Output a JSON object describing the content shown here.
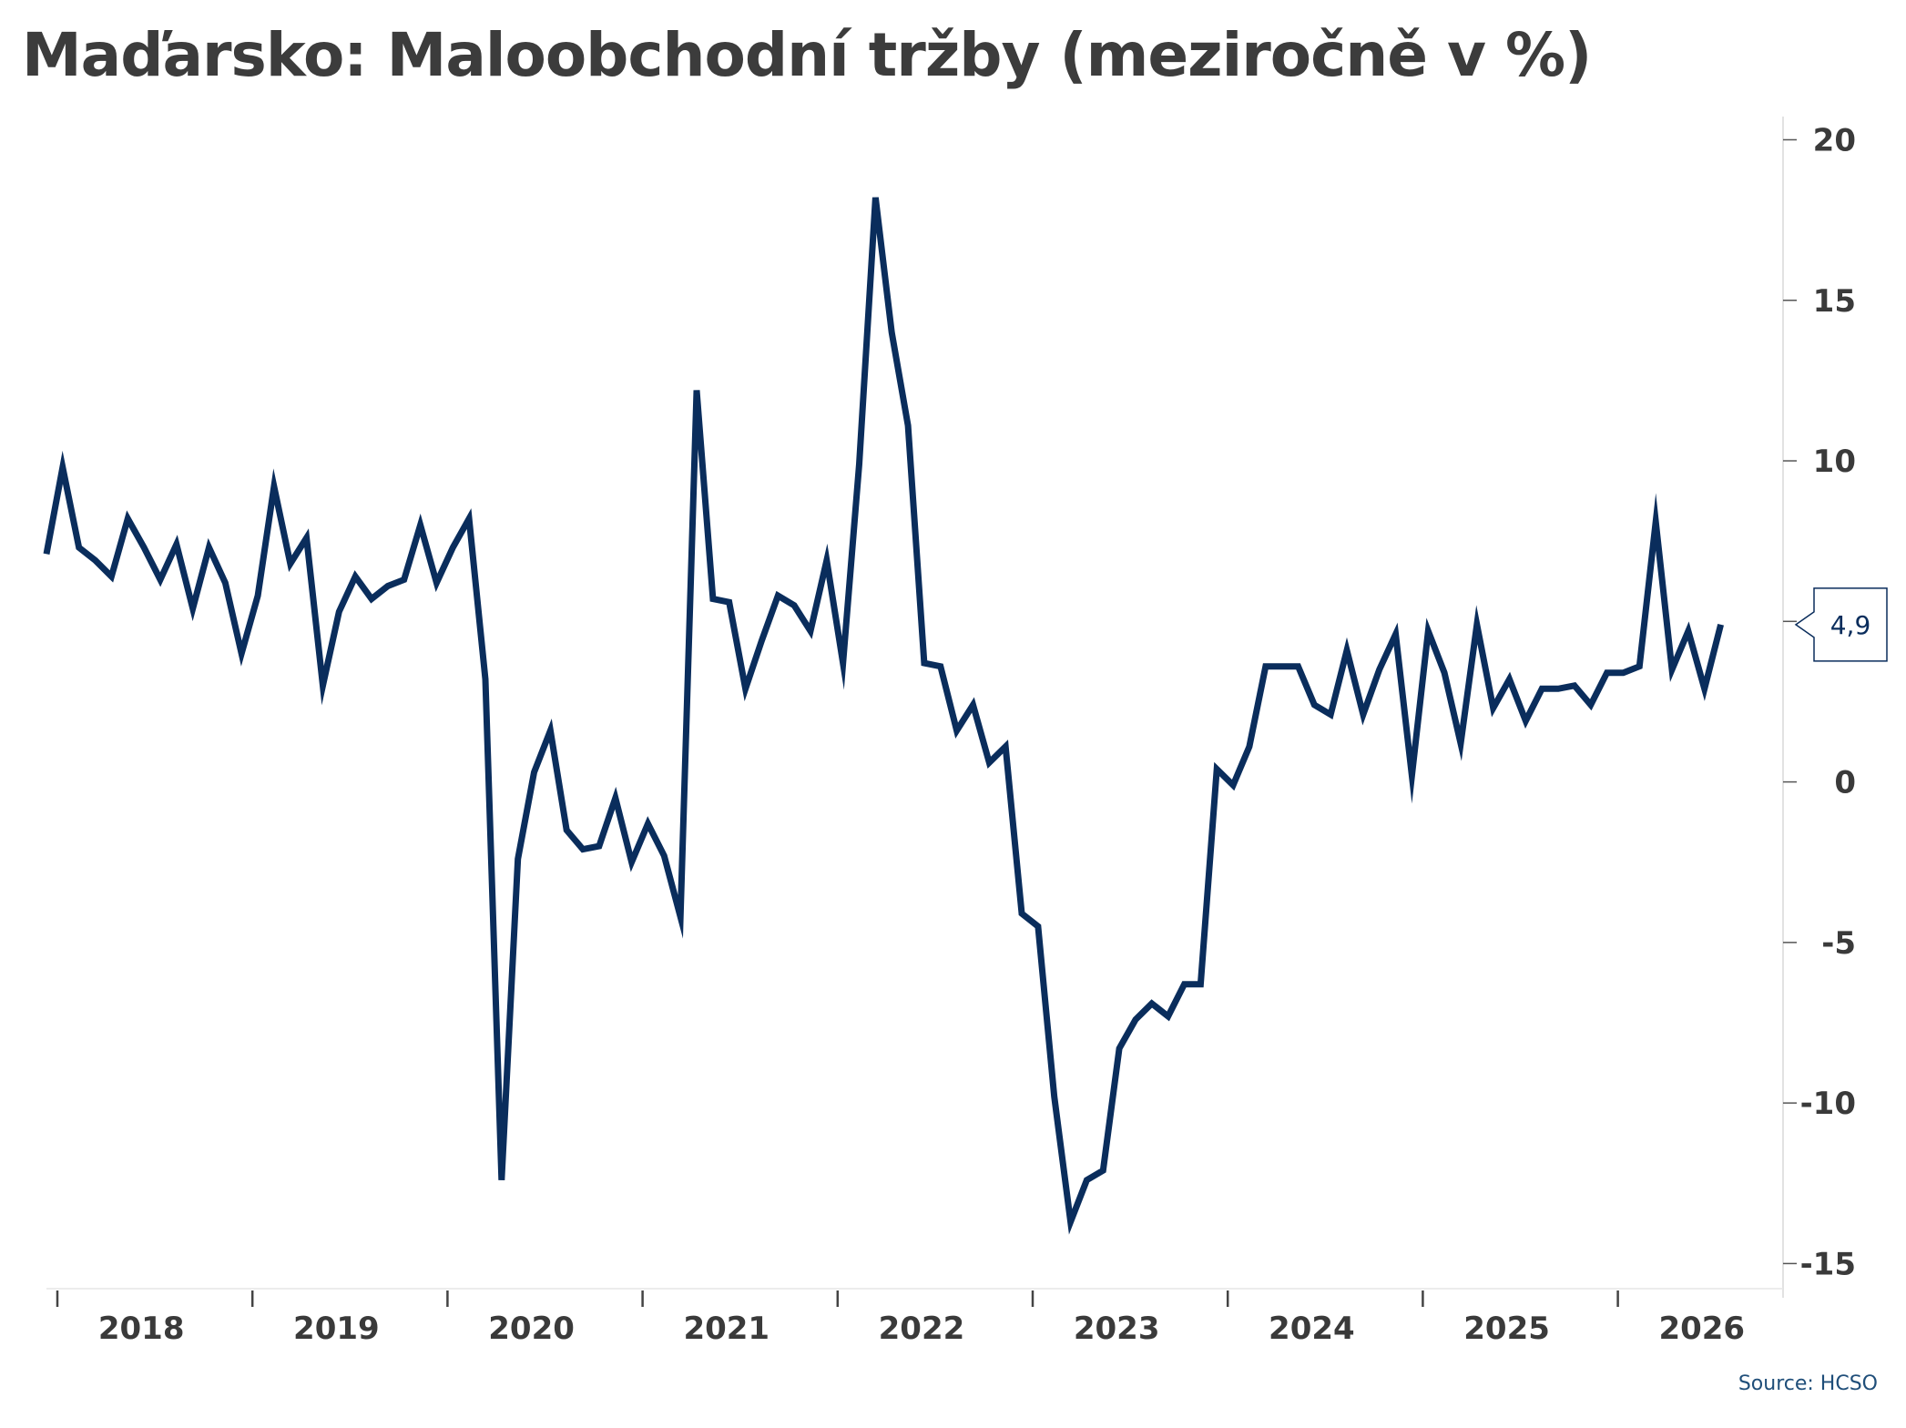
{
  "chart_data": {
    "type": "line",
    "title": "Maďarsko: Maloobchodní tržby (meziročně v %)",
    "source": "Source: HCSO",
    "line_color": "#0a2d5c",
    "y_axis": {
      "position": "right",
      "ylim": [
        -15.7,
        20.3
      ],
      "ticks": [
        20,
        15,
        10,
        5,
        0,
        -5,
        -10,
        -15
      ],
      "tick_labels": [
        "20",
        "15",
        "10",
        "5",
        "0",
        "-5",
        "-10",
        "-15"
      ]
    },
    "x_axis": {
      "start": "2018-01",
      "end": "2026-06",
      "year_labels": [
        "2018",
        "2019",
        "2020",
        "2021",
        "2022",
        "2023",
        "2024",
        "2025",
        "2026"
      ]
    },
    "grid": false,
    "last_value_label": "4,9",
    "series": [
      {
        "x_start": "2018-01",
        "frequency": "monthly",
        "values": [
          7.1,
          9.8,
          7.3,
          6.9,
          6.4,
          8.2,
          7.3,
          6.3,
          7.4,
          5.4,
          7.3,
          6.2,
          4.0,
          5.8,
          9.2,
          6.8,
          7.6,
          3.0,
          5.3,
          6.4,
          5.7,
          6.1,
          6.3,
          8.0,
          6.2,
          7.3,
          8.2,
          3.2,
          -12.4,
          -2.4,
          0.3,
          1.6,
          -1.5,
          -2.1,
          -2.0,
          -0.5,
          -2.5,
          -1.3,
          -2.3,
          -4.2,
          12.2,
          5.7,
          5.6,
          2.9,
          4.4,
          5.8,
          5.5,
          4.7,
          6.9,
          3.7,
          9.9,
          18.2,
          14.0,
          11.1,
          3.7,
          3.6,
          1.6,
          2.4,
          0.6,
          1.1,
          -4.1,
          -4.5,
          -9.8,
          -13.7,
          -12.4,
          -12.1,
          -8.3,
          -7.4,
          -6.9,
          -7.3,
          -6.3,
          -6.3,
          0.4,
          -0.1,
          1.1,
          3.6,
          3.6,
          3.6,
          2.4,
          2.1,
          4.1,
          2.1,
          3.5,
          4.6,
          0.2,
          4.7,
          3.4,
          1.2,
          4.9,
          2.3,
          3.2,
          1.9,
          2.9,
          2.9,
          3.0,
          2.4,
          3.4,
          3.4,
          3.6,
          8.1,
          3.5,
          4.7,
          2.9,
          4.9
        ]
      }
    ]
  }
}
